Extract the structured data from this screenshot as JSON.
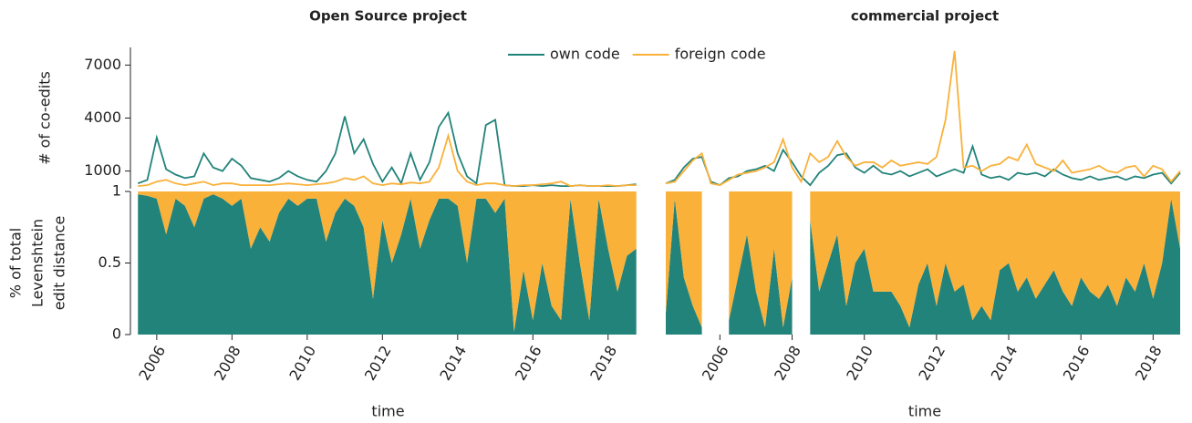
{
  "chart_data": [
    {
      "type": "line",
      "title": "Open Source project",
      "ylabel": "# of co-edits",
      "legend": "upper center",
      "x": [
        2005.5,
        2005.75,
        2006,
        2006.25,
        2006.5,
        2006.75,
        2007,
        2007.25,
        2007.5,
        2007.75,
        2008,
        2008.25,
        2008.5,
        2008.75,
        2009,
        2009.25,
        2009.5,
        2009.75,
        2010,
        2010.25,
        2010.5,
        2010.75,
        2011,
        2011.25,
        2011.5,
        2011.75,
        2012,
        2012.25,
        2012.5,
        2012.75,
        2013,
        2013.25,
        2013.5,
        2013.75,
        2014,
        2014.25,
        2014.5,
        2014.75,
        2015,
        2015.25,
        2015.5,
        2015.75,
        2016,
        2016.25,
        2016.5,
        2016.75,
        2017,
        2017.25,
        2017.5,
        2017.75,
        2018,
        2018.25,
        2018.5,
        2018.75
      ],
      "xlim": [
        2005.3,
        2019.0
      ],
      "ylim": [
        0,
        8000
      ],
      "yticks": [
        1000,
        4000,
        7000
      ],
      "series": [
        {
          "name": "own code",
          "color": "#22837a",
          "values": [
            300,
            500,
            2900,
            1100,
            800,
            600,
            700,
            2000,
            1200,
            1000,
            1700,
            1300,
            600,
            500,
            400,
            600,
            1000,
            700,
            500,
            400,
            1000,
            2000,
            4100,
            2000,
            2800,
            1400,
            400,
            1200,
            300,
            2000,
            500,
            1500,
            3500,
            4300,
            2000,
            700,
            300,
            3600,
            3900,
            200,
            150,
            150,
            200,
            150,
            200,
            150,
            150,
            200,
            150,
            150,
            150,
            150,
            200,
            250
          ]
        },
        {
          "name": "foreign code",
          "color": "#f9b13a",
          "values": [
            150,
            200,
            400,
            500,
            300,
            200,
            300,
            400,
            200,
            300,
            300,
            200,
            200,
            200,
            200,
            250,
            300,
            250,
            200,
            250,
            300,
            400,
            600,
            500,
            700,
            300,
            200,
            300,
            250,
            350,
            300,
            400,
            1200,
            3000,
            1000,
            400,
            200,
            300,
            300,
            200,
            150,
            200,
            200,
            250,
            300,
            400,
            150,
            200,
            150,
            150,
            200,
            150,
            200,
            200
          ]
        }
      ]
    },
    {
      "type": "stacked_area",
      "ylabel": [
        "% of total",
        "Levenshtein",
        "edit distance"
      ],
      "xlabel": "time",
      "x": [
        2005.5,
        2005.75,
        2006,
        2006.25,
        2006.5,
        2006.75,
        2007,
        2007.25,
        2007.5,
        2007.75,
        2008,
        2008.25,
        2008.5,
        2008.75,
        2009,
        2009.25,
        2009.5,
        2009.75,
        2010,
        2010.25,
        2010.5,
        2010.75,
        2011,
        2011.25,
        2011.5,
        2011.75,
        2012,
        2012.25,
        2012.5,
        2012.75,
        2013,
        2013.25,
        2013.5,
        2013.75,
        2014,
        2014.25,
        2014.5,
        2014.75,
        2015,
        2015.25,
        2015.5,
        2015.75,
        2016,
        2016.25,
        2016.5,
        2016.75,
        2017,
        2017.25,
        2017.5,
        2017.75,
        2018,
        2018.25,
        2018.5,
        2018.75
      ],
      "xlim": [
        2005.3,
        2019.0
      ],
      "xticks": [
        2006,
        2008,
        2010,
        2012,
        2014,
        2016,
        2018
      ],
      "ylim": [
        0,
        1
      ],
      "yticks": [
        0,
        0.5,
        1
      ],
      "series": [
        {
          "color": "#22837a",
          "values": [
            0.98,
            0.97,
            0.95,
            0.7,
            0.95,
            0.9,
            0.75,
            0.95,
            0.98,
            0.95,
            0.9,
            0.95,
            0.6,
            0.75,
            0.65,
            0.85,
            0.95,
            0.9,
            0.95,
            0.95,
            0.65,
            0.85,
            0.95,
            0.9,
            0.75,
            0.25,
            0.8,
            0.5,
            0.7,
            0.95,
            0.6,
            0.8,
            0.95,
            0.95,
            0.9,
            0.5,
            0.95,
            0.95,
            0.85,
            0.95,
            0.02,
            0.45,
            0.1,
            0.5,
            0.2,
            0.1,
            0.95,
            0.5,
            0.1,
            0.95,
            0.6,
            0.3,
            0.55,
            0.6
          ]
        },
        {
          "color": "#f9b13a",
          "values": [
            0.02,
            0.03,
            0.05,
            0.3,
            0.05,
            0.1,
            0.25,
            0.05,
            0.02,
            0.05,
            0.1,
            0.05,
            0.4,
            0.25,
            0.35,
            0.15,
            0.05,
            0.1,
            0.05,
            0.05,
            0.35,
            0.15,
            0.05,
            0.1,
            0.25,
            0.75,
            0.2,
            0.5,
            0.3,
            0.05,
            0.4,
            0.2,
            0.05,
            0.05,
            0.1,
            0.5,
            0.05,
            0.05,
            0.15,
            0.05,
            0.98,
            0.55,
            0.9,
            0.5,
            0.8,
            0.9,
            0.05,
            0.5,
            0.9,
            0.05,
            0.4,
            0.7,
            0.45,
            0.4
          ]
        }
      ]
    },
    {
      "type": "line",
      "title": "commercial project",
      "x": [
        2004.5,
        2004.75,
        2005,
        2005.25,
        2005.5,
        2005.75,
        2006,
        2006.25,
        2006.5,
        2006.75,
        2007,
        2007.25,
        2007.5,
        2007.75,
        2008,
        2008.25,
        2008.5,
        2008.75,
        2009,
        2009.25,
        2009.5,
        2009.75,
        2010,
        2010.25,
        2010.5,
        2010.75,
        2011,
        2011.25,
        2011.5,
        2011.75,
        2012,
        2012.25,
        2012.5,
        2012.75,
        2013,
        2013.25,
        2013.5,
        2013.75,
        2014,
        2014.25,
        2014.5,
        2014.75,
        2015,
        2015.25,
        2015.5,
        2015.75,
        2016,
        2016.25,
        2016.5,
        2016.75,
        2017,
        2017.25,
        2017.5,
        2017.75,
        2018,
        2018.25,
        2018.5,
        2018.75
      ],
      "xlim": [
        2004.5,
        2018.85
      ],
      "ylim": [
        0,
        8000
      ],
      "series": [
        {
          "color": "#22837a",
          "values": [
            300,
            500,
            1200,
            1700,
            1800,
            400,
            200,
            600,
            700,
            1000,
            1100,
            1300,
            1000,
            2200,
            1500,
            700,
            200,
            900,
            1300,
            1900,
            2000,
            1200,
            900,
            1300,
            900,
            800,
            1000,
            700,
            900,
            1100,
            700,
            900,
            1100,
            900,
            2400,
            800,
            600,
            700,
            500,
            900,
            800,
            900,
            700,
            1100,
            800,
            600,
            500,
            700,
            500,
            600,
            700,
            500,
            700,
            600,
            800,
            900,
            300,
            900
          ]
        },
        {
          "color": "#f9b13a",
          "values": [
            300,
            400,
            1000,
            1600,
            2000,
            300,
            200,
            500,
            800,
            900,
            1000,
            1200,
            1500,
            2800,
            1200,
            400,
            2000,
            1500,
            1800,
            2700,
            1800,
            1300,
            1500,
            1500,
            1200,
            1600,
            1300,
            1400,
            1500,
            1400,
            1800,
            3900,
            7800,
            1200,
            1300,
            1000,
            1300,
            1400,
            1800,
            1600,
            2500,
            1400,
            1200,
            1000,
            1600,
            900,
            1000,
            1100,
            1300,
            1000,
            900,
            1200,
            1300,
            700,
            1300,
            1100,
            400,
            1000
          ]
        }
      ]
    },
    {
      "type": "stacked_area",
      "xlabel": "time",
      "x": [
        2004.5,
        2004.75,
        2005,
        2005.25,
        2005.5,
        2005.75,
        2006,
        2006.25,
        2006.5,
        2006.75,
        2007,
        2007.25,
        2007.5,
        2007.75,
        2008,
        2008.25,
        2008.5,
        2008.75,
        2009,
        2009.25,
        2009.5,
        2009.75,
        2010,
        2010.25,
        2010.5,
        2010.75,
        2011,
        2011.25,
        2011.5,
        2011.75,
        2012,
        2012.25,
        2012.5,
        2012.75,
        2013,
        2013.25,
        2013.5,
        2013.75,
        2014,
        2014.25,
        2014.5,
        2014.75,
        2015,
        2015.25,
        2015.5,
        2015.75,
        2016,
        2016.25,
        2016.5,
        2016.75,
        2017,
        2017.25,
        2017.5,
        2017.75,
        2018,
        2018.25,
        2018.5,
        2018.75
      ],
      "xlim": [
        2004.5,
        2018.85
      ],
      "xticks": [
        2006,
        2008,
        2010,
        2012,
        2014,
        2016,
        2018
      ],
      "ylim": [
        0,
        1
      ],
      "series": [
        {
          "color": "#22837a",
          "values": [
            0.15,
            0.95,
            0.4,
            0.2,
            0.05,
            null,
            null,
            0.1,
            0.4,
            0.7,
            0.3,
            0.05,
            0.6,
            0.05,
            0.4,
            null,
            0.8,
            0.3,
            0.5,
            0.7,
            0.2,
            0.5,
            0.6,
            0.3,
            0.3,
            0.3,
            0.2,
            0.05,
            0.35,
            0.5,
            0.2,
            0.5,
            0.3,
            0.35,
            0.1,
            0.2,
            0.1,
            0.45,
            0.5,
            0.3,
            0.4,
            0.25,
            0.35,
            0.45,
            0.3,
            0.2,
            0.4,
            0.3,
            0.25,
            0.35,
            0.2,
            0.4,
            0.3,
            0.5,
            0.25,
            0.5,
            0.95,
            0.6
          ]
        },
        {
          "color": "#f9b13a",
          "values": [
            0.85,
            0.05,
            0.6,
            0.8,
            0.95,
            null,
            null,
            0.9,
            0.6,
            0.3,
            0.7,
            0.95,
            0.4,
            0.95,
            0.6,
            null,
            0.2,
            0.7,
            0.5,
            0.3,
            0.8,
            0.5,
            0.4,
            0.7,
            0.7,
            0.7,
            0.8,
            0.95,
            0.65,
            0.5,
            0.8,
            0.5,
            0.7,
            0.65,
            0.9,
            0.8,
            0.9,
            0.55,
            0.5,
            0.7,
            0.6,
            0.75,
            0.65,
            0.55,
            0.7,
            0.8,
            0.6,
            0.7,
            0.75,
            0.65,
            0.8,
            0.6,
            0.7,
            0.5,
            0.75,
            0.5,
            0.05,
            0.4
          ]
        }
      ]
    }
  ]
}
